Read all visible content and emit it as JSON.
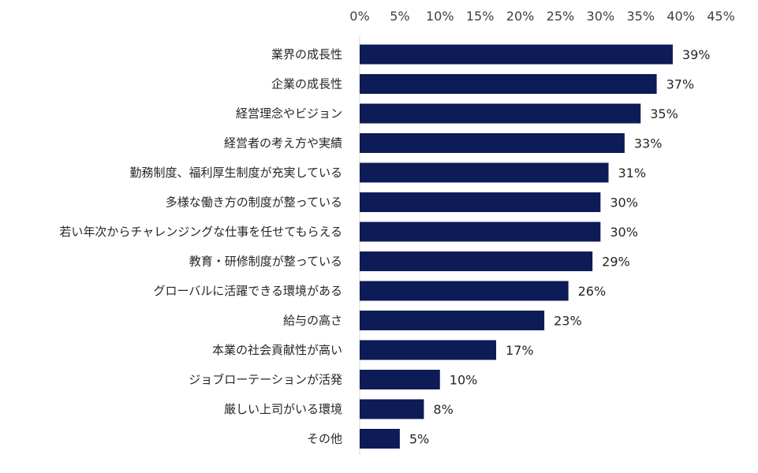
{
  "chart_data": {
    "type": "bar",
    "orientation": "horizontal",
    "categories": [
      "業界の成長性",
      "企業の成長性",
      "経営理念やビジョン",
      "経営者の考え方や実績",
      "勤務制度、福利厚生制度が充実している",
      "多様な働き方の制度が整っている",
      "若い年次からチャレンジングな仕事を任せてもらえる",
      "教育・研修制度が整っている",
      "グローバルに活躍できる環境がある",
      "給与の高さ",
      "本業の社会貢献性が高い",
      "ジョブローテーションが活発",
      "厳しい上司がいる環境",
      "その他"
    ],
    "values": [
      39,
      37,
      35,
      33,
      31,
      30,
      30,
      29,
      26,
      23,
      17,
      10,
      8,
      5
    ],
    "value_labels": [
      "39%",
      "37%",
      "35%",
      "33%",
      "31%",
      "30%",
      "30%",
      "29%",
      "26%",
      "23%",
      "17%",
      "10%",
      "8%",
      "5%"
    ],
    "xlim": [
      0,
      45
    ],
    "x_ticks": [
      0,
      5,
      10,
      15,
      20,
      25,
      30,
      35,
      40,
      45
    ],
    "x_tick_labels": [
      "0%",
      "5%",
      "10%",
      "15%",
      "20%",
      "25%",
      "30%",
      "35%",
      "40%",
      "45%"
    ],
    "x_axis_position": "top",
    "grid": false,
    "bar_color": "#0d1b57",
    "axis_color": "#d9d9d9"
  }
}
